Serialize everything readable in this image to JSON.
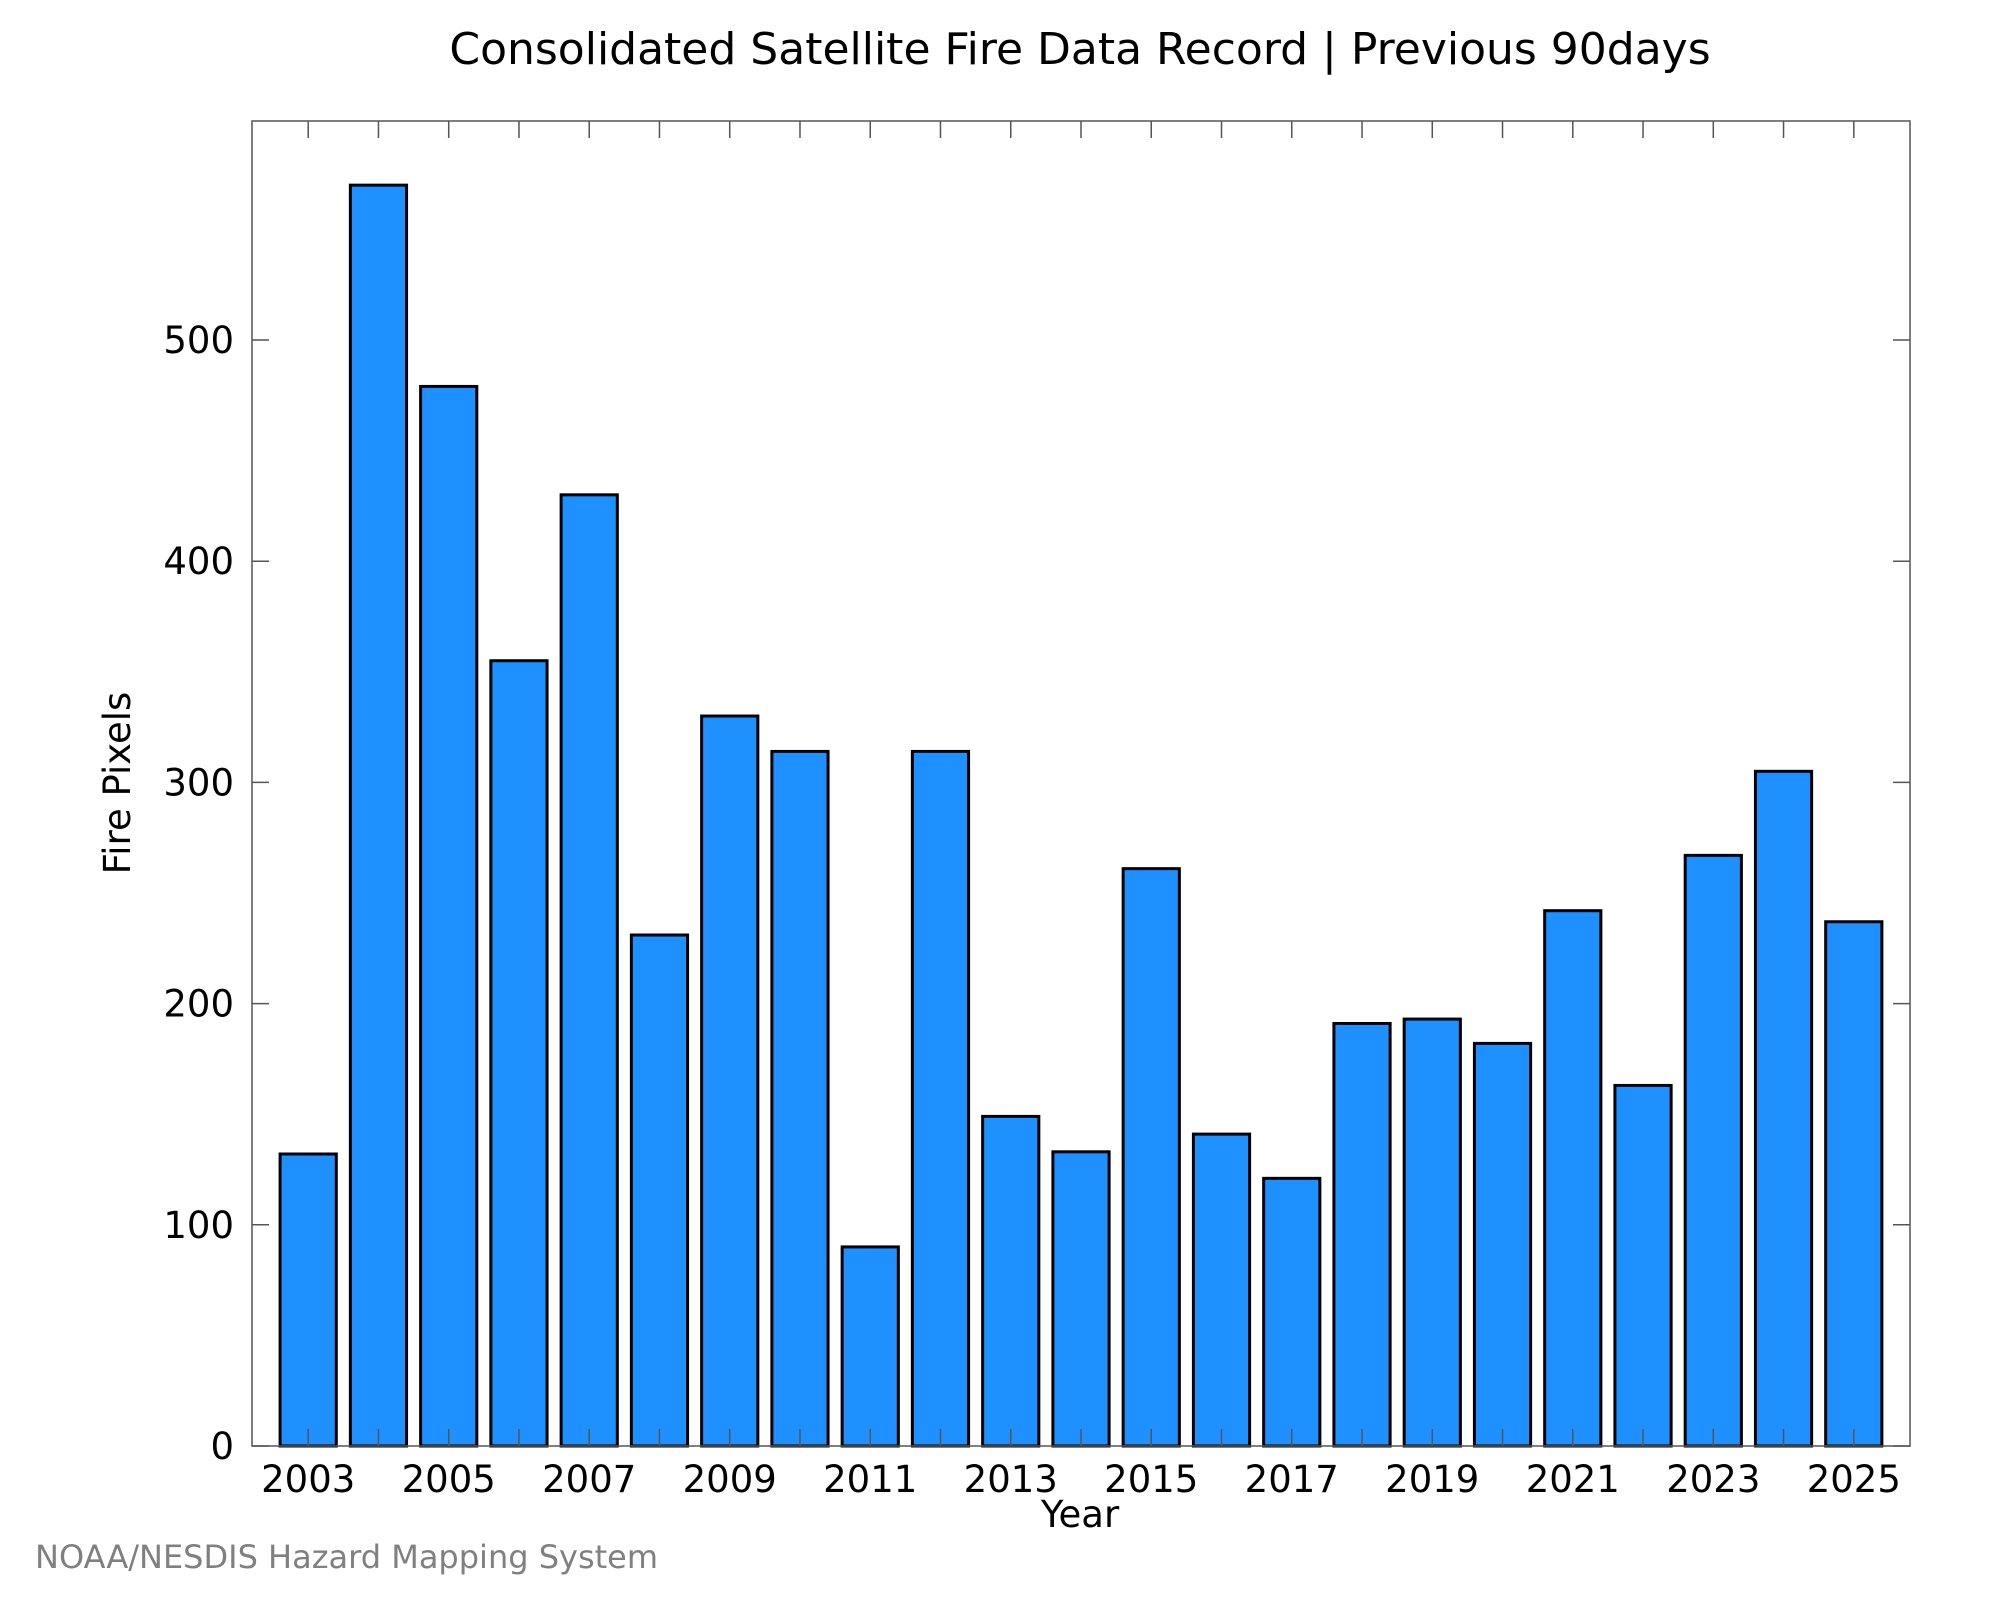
{
  "chart_data": {
    "type": "bar",
    "title": "Consolidated Satellite Fire Data Record | Previous 90days",
    "xlabel": "Year",
    "ylabel": "Fire Pixels",
    "categories": [
      "2003",
      "2004",
      "2005",
      "2006",
      "2007",
      "2008",
      "2009",
      "2010",
      "2011",
      "2012",
      "2013",
      "2014",
      "2015",
      "2016",
      "2017",
      "2018",
      "2019",
      "2020",
      "2021",
      "2022",
      "2023",
      "2024",
      "2025"
    ],
    "values": [
      132,
      570,
      479,
      355,
      430,
      231,
      330,
      314,
      90,
      314,
      149,
      133,
      261,
      141,
      121,
      191,
      193,
      182,
      242,
      163,
      267,
      305,
      237
    ],
    "x_tick_labels": [
      "2003",
      "2005",
      "2007",
      "2009",
      "2011",
      "2013",
      "2015",
      "2017",
      "2019",
      "2021",
      "2023",
      "2025"
    ],
    "y_ticks": [
      0,
      100,
      200,
      300,
      400,
      500
    ],
    "ylim": [
      0,
      599
    ],
    "bar_color": "#1e90ff",
    "bar_edge_color": "#000000",
    "grid": false,
    "legend": "none"
  },
  "credit": "NOAA/NESDIS Hazard Mapping System"
}
